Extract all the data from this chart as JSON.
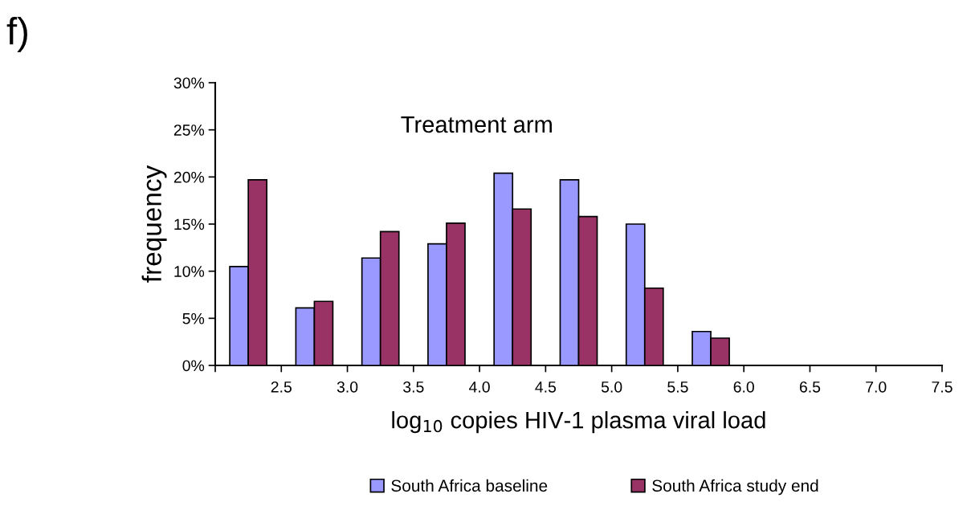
{
  "chart_data": {
    "type": "histogram",
    "title": "Treatment arm",
    "xlabel": "log$_{10}$ copies HIV-1 plasma viral load",
    "ylabel": "frequency",
    "annotations": [
      "f)"
    ],
    "bins": [
      2.0,
      2.5,
      3.0,
      3.5,
      4.0,
      4.5,
      5.0,
      5.5,
      6.0,
      6.5,
      7.0,
      7.5
    ],
    "series": [
      {
        "name": "South Africa baseline",
        "color": "#9999ff",
        "values": [
          10.5,
          6.1,
          11.4,
          12.9,
          20.4,
          19.7,
          15.0,
          3.6,
          0,
          0,
          0
        ]
      },
      {
        "name": "South Africa study end",
        "color": "#993366",
        "values": [
          19.7,
          6.8,
          14.2,
          15.1,
          16.6,
          15.8,
          8.2,
          2.9,
          0,
          0,
          0
        ]
      }
    ],
    "xlim": [
      2.0,
      7.5
    ],
    "xticks": [
      {
        "value": 2.0,
        "label": null
      },
      2.5,
      {
        "value": 3.0,
        "label": "3.0"
      },
      3.5,
      {
        "value": 4.0,
        "label": "4.0"
      },
      4.5,
      {
        "value": 5.0,
        "label": "5.0"
      },
      5.5,
      {
        "value": 6.0,
        "label": "6.0"
      },
      6.5,
      {
        "value": 7.0,
        "label": "7.0"
      },
      7.5
    ],
    "ylim": [
      0,
      30
    ],
    "yticks": [
      {
        "value": 0,
        "label": "0%"
      },
      {
        "value": 5,
        "label": "5%"
      },
      {
        "value": 10,
        "label": "10%"
      },
      {
        "value": 15,
        "label": "15%"
      },
      {
        "value": 20,
        "label": "20%"
      },
      {
        "value": 25,
        "label": "25%"
      },
      {
        "value": 30,
        "label": "30%"
      }
    ],
    "grid": false,
    "legend": "bottom"
  }
}
